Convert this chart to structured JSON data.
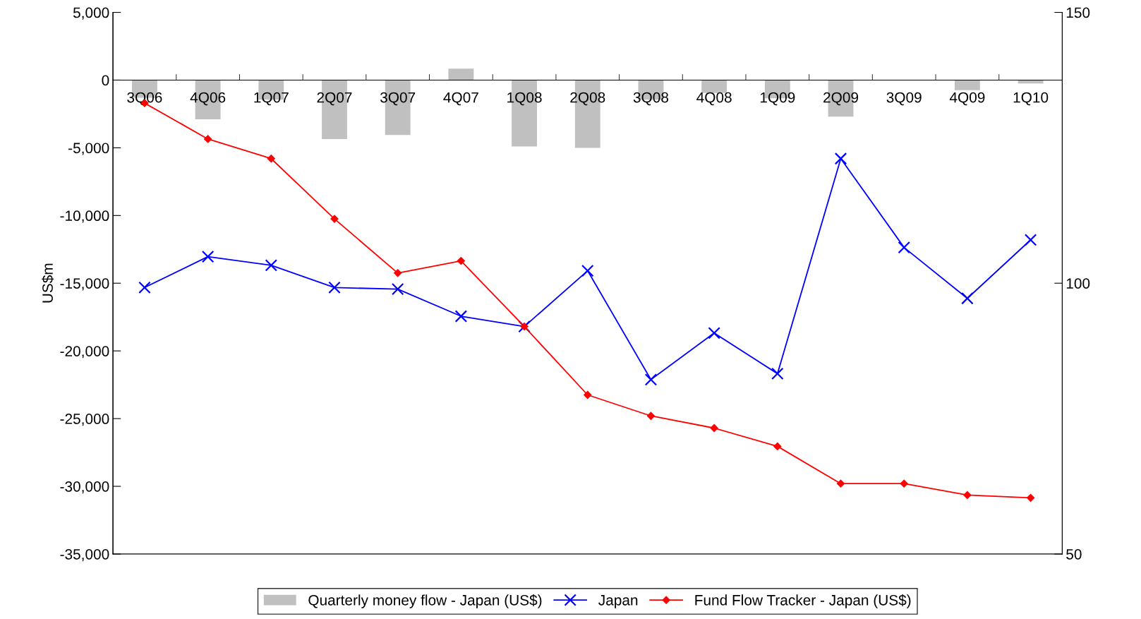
{
  "chart_data": {
    "type": "bar",
    "ylabel": "US$m",
    "categories": [
      "3Q06",
      "4Q06",
      "1Q07",
      "2Q07",
      "3Q07",
      "4Q07",
      "1Q08",
      "2Q08",
      "3Q08",
      "4Q08",
      "1Q09",
      "2Q09",
      "3Q09",
      "4Q09",
      "1Q10"
    ],
    "series": [
      {
        "name": "Quarterly money flow - Japan (US$)",
        "color": "#c0c0c0",
        "values": [
          -1300,
          -2900,
          -1450,
          -4350,
          -4050,
          850,
          -4900,
          -5000,
          -1450,
          -950,
          -1350,
          -2700,
          0,
          -750,
          -250
        ]
      },
      {
        "name": "Japan",
        "type": "line",
        "axis": "y2",
        "color": "#0000ff",
        "marker": "cross",
        "values": [
          99.2,
          104.9,
          103.3,
          99.2,
          98.9,
          93.9,
          92.0,
          102.3,
          82.2,
          90.8,
          83.3,
          123.0,
          106.6,
          97.2,
          108.0
        ]
      },
      {
        "name": "Fund Flow Tracker - Japan (US$)",
        "type": "line",
        "color": "#ff0000",
        "marker": "diamond",
        "values": [
          -1700,
          -4350,
          -5800,
          -10250,
          -14250,
          -13350,
          -18200,
          -23250,
          -24800,
          -25700,
          -27050,
          -29800,
          -29800,
          -30650,
          -30850
        ]
      }
    ],
    "ylim": [
      -35000,
      5000
    ],
    "yticks": [
      {
        "value": -35000,
        "label": "-35,000"
      },
      {
        "value": -30000,
        "label": "-30,000"
      },
      {
        "value": -25000,
        "label": "-25,000"
      },
      {
        "value": -20000,
        "label": "-20,000"
      },
      {
        "value": -15000,
        "label": "-15,000"
      },
      {
        "value": -10000,
        "label": "-10,000"
      },
      {
        "value": -5000,
        "label": "-5,000"
      },
      0,
      {
        "value": 5000,
        "label": "5,000"
      }
    ],
    "y2lim": [
      50,
      150
    ],
    "y2ticks": [
      50,
      100,
      150
    ],
    "grid": false,
    "legend": "bottom"
  }
}
